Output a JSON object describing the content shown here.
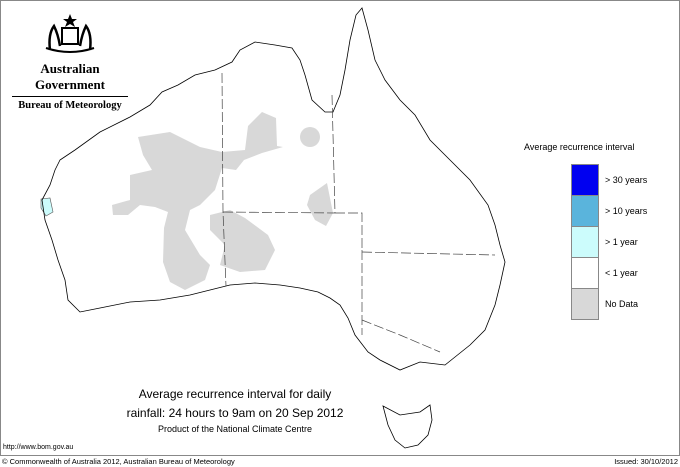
{
  "header": {
    "government": "Australian Government",
    "bureau": "Bureau of Meteorology",
    "logo_icon": "coat-of-arms-icon"
  },
  "legend": {
    "title": "Average recurrence interval",
    "items": [
      {
        "label": "> 30 years",
        "color": "#0000f0"
      },
      {
        "label": "> 10 years",
        "color": "#5ab4dc"
      },
      {
        "label": "> 1 year",
        "color": "#ccfcfc"
      },
      {
        "label": "< 1 year",
        "color": "#ffffff"
      },
      {
        "label": "No Data",
        "color": "#d8d8d8"
      }
    ]
  },
  "caption": {
    "line1": "Average recurrence interval for daily",
    "line2": "rainfall: 24 hours to 9am on 20 Sep 2012",
    "line3": "Product of the National Climate Centre"
  },
  "footer": {
    "url": "http://www.bom.gov.au",
    "copyright": "© Commonwealth of Australia 2012, Australian Bureau of Meteorology",
    "issued": "Issued: 30/10/2012"
  }
}
